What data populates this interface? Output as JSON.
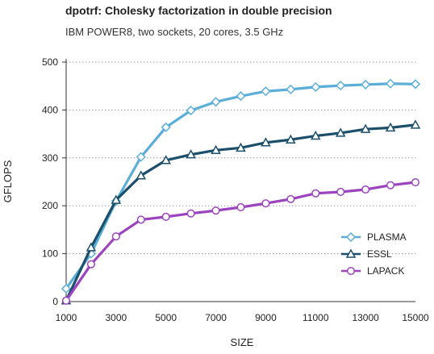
{
  "chart_data": {
    "type": "line",
    "title": "dpotrf: Cholesky factorization in double precision",
    "subtitle": "IBM POWER8, two sockets, 20 cores, 3.5 GHz",
    "xlabel": "SIZE",
    "ylabel": "GFLOPS",
    "xlim": [
      1000,
      15000
    ],
    "ylim": [
      0,
      500
    ],
    "x_ticks": [
      1000,
      3000,
      5000,
      7000,
      9000,
      11000,
      13000,
      15000
    ],
    "y_ticks": [
      0,
      100,
      200,
      300,
      400,
      500
    ],
    "grid": "horizontal dotted",
    "legend_position": "right",
    "x": [
      1000,
      2000,
      3000,
      4000,
      5000,
      6000,
      7000,
      8000,
      9000,
      10000,
      11000,
      12000,
      13000,
      14000,
      15000
    ],
    "series": [
      {
        "name": "PLASMA",
        "marker": "diamond",
        "color": "#5aaed8",
        "values": [
          27,
          100,
          210,
          302,
          364,
          399,
          417,
          429,
          439,
          443,
          448,
          451,
          453,
          455,
          454
        ]
      },
      {
        "name": "ESSL",
        "marker": "triangle",
        "color": "#1b4f6b",
        "values": [
          2,
          113,
          212,
          263,
          295,
          307,
          316,
          321,
          332,
          338,
          346,
          352,
          360,
          363,
          369
        ]
      },
      {
        "name": "LAPACK",
        "marker": "circle",
        "color": "#9c44be",
        "values": [
          2,
          78,
          136,
          171,
          177,
          184,
          190,
          197,
          205,
          214,
          226,
          229,
          234,
          243,
          249
        ]
      }
    ]
  }
}
